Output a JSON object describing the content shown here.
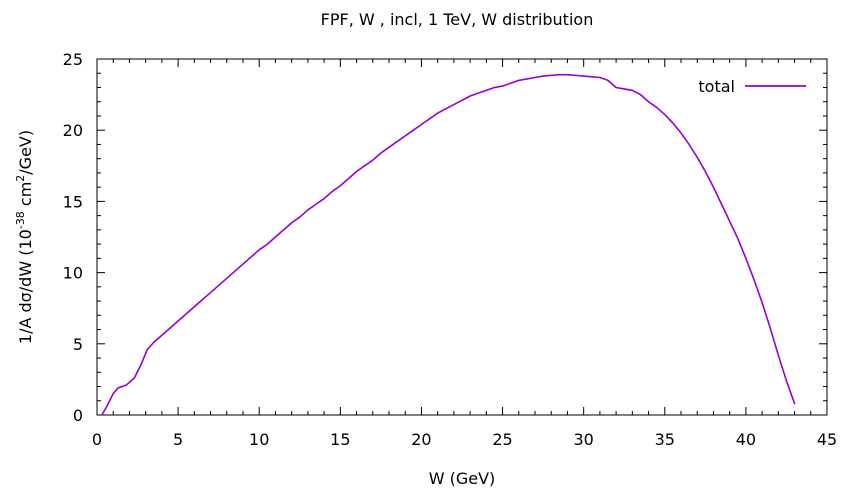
{
  "chart_data": {
    "type": "line",
    "title": "FPF, W , incl, 1 TeV, W distribution",
    "xlabel": "W (GeV)",
    "ylabel_parts": {
      "before": "1/A dσ/dW (10",
      "exponent1": "-38",
      "middle": " cm",
      "exponent2": "2",
      "after": "/GeV)"
    },
    "xlim": [
      0,
      45
    ],
    "ylim": [
      0,
      25
    ],
    "x_ticks": [
      0,
      5,
      10,
      15,
      20,
      25,
      30,
      35,
      40,
      45
    ],
    "y_ticks": [
      0,
      5,
      10,
      15,
      20,
      25
    ],
    "x_tick_labels": [
      "0",
      "5",
      "10",
      "15",
      "20",
      "25",
      "30",
      "35",
      "40",
      "45"
    ],
    "y_tick_labels": [
      "0",
      "5",
      "10",
      "15",
      "20",
      "25"
    ],
    "grid": false,
    "legend_position": "top-right",
    "series": [
      {
        "name": "total",
        "color": "#9400d3",
        "x": [
          0.3,
          0.6,
          1.0,
          1.3,
          1.8,
          2.3,
          2.7,
          3.1,
          3.5,
          4.0,
          4.5,
          5.0,
          5.5,
          6.0,
          6.5,
          7.0,
          7.5,
          8.0,
          8.5,
          9.0,
          9.5,
          10.0,
          10.5,
          11.0,
          11.5,
          12.0,
          12.5,
          13.0,
          13.5,
          14.0,
          14.5,
          15.0,
          15.5,
          16.0,
          16.5,
          17.0,
          17.5,
          18.0,
          18.5,
          19.0,
          19.5,
          20.0,
          20.5,
          21.0,
          21.5,
          22.0,
          22.5,
          23.0,
          23.5,
          24.0,
          24.5,
          25.0,
          25.5,
          26.0,
          26.5,
          27.0,
          27.5,
          28.0,
          28.5,
          29.0,
          29.5,
          30.0,
          30.5,
          31.0,
          31.5,
          32.0,
          32.5,
          33.0,
          33.5,
          34.0,
          34.5,
          35.0,
          35.5,
          36.0,
          36.5,
          37.0,
          37.5,
          38.0,
          38.5,
          39.0,
          39.5,
          40.0,
          40.5,
          41.0,
          41.5,
          42.0,
          42.5,
          43.0
        ],
        "y": [
          0.0,
          0.6,
          1.5,
          1.9,
          2.1,
          2.6,
          3.5,
          4.6,
          5.1,
          5.6,
          6.1,
          6.6,
          7.1,
          7.6,
          8.1,
          8.6,
          9.1,
          9.6,
          10.1,
          10.6,
          11.1,
          11.6,
          12.0,
          12.5,
          13.0,
          13.5,
          13.9,
          14.4,
          14.8,
          15.2,
          15.7,
          16.1,
          16.6,
          17.1,
          17.5,
          17.9,
          18.4,
          18.8,
          19.2,
          19.6,
          20.0,
          20.4,
          20.8,
          21.2,
          21.5,
          21.8,
          22.1,
          22.4,
          22.6,
          22.8,
          23.0,
          23.1,
          23.3,
          23.5,
          23.6,
          23.7,
          23.8,
          23.85,
          23.9,
          23.9,
          23.85,
          23.8,
          23.75,
          23.7,
          23.5,
          23.0,
          22.9,
          22.8,
          22.5,
          22.0,
          21.6,
          21.1,
          20.5,
          19.8,
          19.0,
          18.1,
          17.1,
          16.0,
          14.8,
          13.6,
          12.4,
          11.0,
          9.5,
          7.9,
          6.1,
          4.2,
          2.4,
          0.8
        ]
      }
    ]
  }
}
